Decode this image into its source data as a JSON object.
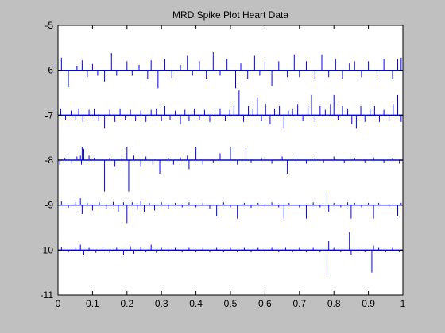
{
  "window": {
    "background": "#c0c0c0"
  },
  "chart_data": {
    "type": "line",
    "title": "MRD Spike Plot Heart Data",
    "xlabel": "",
    "ylabel": "",
    "xlim": [
      0,
      1
    ],
    "ylim": [
      -11,
      -5
    ],
    "xticks": [
      0,
      0.1,
      0.2,
      0.3,
      0.4,
      0.5,
      0.6,
      0.7,
      0.8,
      0.9,
      1
    ],
    "xtick_labels": [
      "0",
      "0.1",
      "0.2",
      "0.3",
      "0.4",
      "0.5",
      "0.6",
      "0.7",
      "0.8",
      "0.9",
      "1"
    ],
    "yticks": [
      -5,
      -6,
      -7,
      -8,
      -9,
      -10,
      -11
    ],
    "ytick_labels": [
      "-5",
      "-6",
      "-7",
      "-8",
      "-9",
      "-10",
      "-11"
    ],
    "grid": false,
    "line_color": "#0000ff",
    "axes_background": "#ffffff",
    "series": [
      {
        "baseline": -6,
        "spikes": [
          [
            0.01,
            0.28
          ],
          [
            0.03,
            -0.38
          ],
          [
            0.055,
            0.1
          ],
          [
            0.07,
            0.22
          ],
          [
            0.085,
            -0.15
          ],
          [
            0.1,
            0.14
          ],
          [
            0.115,
            -0.12
          ],
          [
            0.135,
            -0.25
          ],
          [
            0.155,
            0.38
          ],
          [
            0.17,
            -0.12
          ],
          [
            0.2,
            0.2
          ],
          [
            0.215,
            -0.12
          ],
          [
            0.235,
            0.12
          ],
          [
            0.26,
            -0.2
          ],
          [
            0.27,
            0.22
          ],
          [
            0.29,
            -0.4
          ],
          [
            0.31,
            0.25
          ],
          [
            0.33,
            -0.18
          ],
          [
            0.355,
            0.12
          ],
          [
            0.375,
            0.32
          ],
          [
            0.39,
            -0.12
          ],
          [
            0.41,
            0.2
          ],
          [
            0.43,
            -0.2
          ],
          [
            0.45,
            0.4
          ],
          [
            0.47,
            -0.12
          ],
          [
            0.49,
            0.25
          ],
          [
            0.515,
            -0.4
          ],
          [
            0.53,
            0.15
          ],
          [
            0.55,
            -0.2
          ],
          [
            0.57,
            0.32
          ],
          [
            0.585,
            -0.12
          ],
          [
            0.6,
            0.2
          ],
          [
            0.62,
            -0.35
          ],
          [
            0.64,
            0.2
          ],
          [
            0.665,
            -0.15
          ],
          [
            0.685,
            0.35
          ],
          [
            0.7,
            -0.15
          ],
          [
            0.72,
            0.2
          ],
          [
            0.745,
            -0.2
          ],
          [
            0.765,
            0.35
          ],
          [
            0.785,
            -0.15
          ],
          [
            0.805,
            0.25
          ],
          [
            0.825,
            -0.2
          ],
          [
            0.845,
            0.15
          ],
          [
            0.86,
            0.2
          ],
          [
            0.88,
            -0.15
          ],
          [
            0.9,
            0.2
          ],
          [
            0.925,
            -0.2
          ],
          [
            0.945,
            0.25
          ],
          [
            0.97,
            -0.2
          ],
          [
            0.985,
            0.25
          ],
          [
            0.995,
            0.28
          ]
        ]
      },
      {
        "baseline": -7,
        "spikes": [
          [
            0.008,
            0.15
          ],
          [
            0.022,
            -0.1
          ],
          [
            0.038,
            0.1
          ],
          [
            0.05,
            -0.1
          ],
          [
            0.06,
            0.15
          ],
          [
            0.072,
            -0.15
          ],
          [
            0.09,
            0.12
          ],
          [
            0.105,
            0.15
          ],
          [
            0.118,
            -0.12
          ],
          [
            0.135,
            -0.3
          ],
          [
            0.15,
            0.12
          ],
          [
            0.165,
            -0.15
          ],
          [
            0.18,
            0.15
          ],
          [
            0.195,
            -0.1
          ],
          [
            0.21,
            0.12
          ],
          [
            0.225,
            -0.12
          ],
          [
            0.24,
            0.1
          ],
          [
            0.255,
            -0.15
          ],
          [
            0.27,
            0.12
          ],
          [
            0.285,
            0.15
          ],
          [
            0.3,
            -0.12
          ],
          [
            0.31,
            0.2
          ],
          [
            0.325,
            -0.1
          ],
          [
            0.34,
            0.1
          ],
          [
            0.355,
            -0.2
          ],
          [
            0.368,
            0.12
          ],
          [
            0.38,
            -0.12
          ],
          [
            0.395,
            0.15
          ],
          [
            0.41,
            -0.1
          ],
          [
            0.425,
            0.12
          ],
          [
            0.44,
            -0.15
          ],
          [
            0.455,
            0.12
          ],
          [
            0.47,
            0.15
          ],
          [
            0.485,
            -0.12
          ],
          [
            0.498,
            0.12
          ],
          [
            0.51,
            0.2
          ],
          [
            0.525,
            0.55
          ],
          [
            0.538,
            -0.15
          ],
          [
            0.552,
            0.2
          ],
          [
            0.565,
            0.15
          ],
          [
            0.578,
            0.4
          ],
          [
            0.59,
            -0.12
          ],
          [
            0.602,
            0.25
          ],
          [
            0.615,
            -0.2
          ],
          [
            0.628,
            0.15
          ],
          [
            0.642,
            0.2
          ],
          [
            0.655,
            -0.3
          ],
          [
            0.668,
            0.1
          ],
          [
            0.68,
            0.15
          ],
          [
            0.695,
            0.25
          ],
          [
            0.71,
            -0.12
          ],
          [
            0.725,
            0.2
          ],
          [
            0.735,
            0.45
          ],
          [
            0.745,
            -0.15
          ],
          [
            0.76,
            0.2
          ],
          [
            0.775,
            0.12
          ],
          [
            0.79,
            0.25
          ],
          [
            0.8,
            0.45
          ],
          [
            0.812,
            -0.1
          ],
          [
            0.825,
            0.2
          ],
          [
            0.84,
            0.15
          ],
          [
            0.852,
            -0.2
          ],
          [
            0.865,
            -0.3
          ],
          [
            0.878,
            0.2
          ],
          [
            0.89,
            -0.15
          ],
          [
            0.905,
            0.15
          ],
          [
            0.918,
            0.2
          ],
          [
            0.932,
            -0.15
          ],
          [
            0.945,
            0.12
          ],
          [
            0.96,
            -0.12
          ],
          [
            0.972,
            0.25
          ],
          [
            0.985,
            0.45
          ],
          [
            0.995,
            -0.15
          ]
        ]
      },
      {
        "baseline": -8,
        "spikes": [
          [
            0.005,
            -0.1
          ],
          [
            0.02,
            0.05
          ],
          [
            0.04,
            -0.08
          ],
          [
            0.055,
            0.08
          ],
          [
            0.065,
            0.1
          ],
          [
            0.068,
            -0.1
          ],
          [
            0.07,
            0.3
          ],
          [
            0.075,
            0.25
          ],
          [
            0.09,
            0.1
          ],
          [
            0.105,
            0.05
          ],
          [
            0.135,
            -0.7
          ],
          [
            0.15,
            0.05
          ],
          [
            0.165,
            -0.15
          ],
          [
            0.185,
            0.05
          ],
          [
            0.2,
            0.3
          ],
          [
            0.205,
            -0.7
          ],
          [
            0.22,
            0.1
          ],
          [
            0.24,
            -0.15
          ],
          [
            0.255,
            0.08
          ],
          [
            0.275,
            -0.1
          ],
          [
            0.295,
            -0.3
          ],
          [
            0.32,
            0.05
          ],
          [
            0.335,
            -0.1
          ],
          [
            0.355,
            0.06
          ],
          [
            0.375,
            0.1
          ],
          [
            0.38,
            -0.2
          ],
          [
            0.4,
            0.3
          ],
          [
            0.42,
            -0.1
          ],
          [
            0.45,
            -0.05
          ],
          [
            0.47,
            0.15
          ],
          [
            0.5,
            0.3
          ],
          [
            0.52,
            -0.1
          ],
          [
            0.545,
            0.3
          ],
          [
            0.56,
            -0.05
          ],
          [
            0.59,
            0.05
          ],
          [
            0.62,
            -0.08
          ],
          [
            0.65,
            0.08
          ],
          [
            0.665,
            -0.3
          ],
          [
            0.69,
            0.06
          ],
          [
            0.72,
            -0.08
          ],
          [
            0.745,
            0.05
          ],
          [
            0.77,
            -0.05
          ],
          [
            0.8,
            0.08
          ],
          [
            0.83,
            -0.06
          ],
          [
            0.86,
            0.05
          ],
          [
            0.89,
            -0.05
          ],
          [
            0.915,
            0.06
          ],
          [
            0.945,
            -0.06
          ],
          [
            0.97,
            0.05
          ],
          [
            0.99,
            -0.08
          ]
        ]
      },
      {
        "baseline": -9,
        "spikes": [
          [
            0.01,
            0.08
          ],
          [
            0.03,
            -0.06
          ],
          [
            0.05,
            0.07
          ],
          [
            0.065,
            0.15
          ],
          [
            0.07,
            -0.2
          ],
          [
            0.085,
            0.05
          ],
          [
            0.1,
            -0.12
          ],
          [
            0.12,
            0.06
          ],
          [
            0.14,
            -0.08
          ],
          [
            0.16,
            0.07
          ],
          [
            0.175,
            -0.15
          ],
          [
            0.19,
            0.06
          ],
          [
            0.2,
            -0.4
          ],
          [
            0.215,
            0.06
          ],
          [
            0.23,
            -0.1
          ],
          [
            0.24,
            0.1
          ],
          [
            0.25,
            -0.15
          ],
          [
            0.265,
            0.05
          ],
          [
            0.28,
            -0.12
          ],
          [
            0.3,
            0.06
          ],
          [
            0.32,
            -0.08
          ],
          [
            0.34,
            0.05
          ],
          [
            0.36,
            -0.05
          ],
          [
            0.38,
            0.06
          ],
          [
            0.4,
            -0.05
          ],
          [
            0.42,
            0.05
          ],
          [
            0.44,
            -0.08
          ],
          [
            0.46,
            -0.25
          ],
          [
            0.48,
            0.06
          ],
          [
            0.5,
            -0.05
          ],
          [
            0.52,
            -0.3
          ],
          [
            0.54,
            0.05
          ],
          [
            0.56,
            -0.06
          ],
          [
            0.58,
            0.05
          ],
          [
            0.6,
            -0.05
          ],
          [
            0.62,
            0.06
          ],
          [
            0.64,
            -0.05
          ],
          [
            0.655,
            -0.3
          ],
          [
            0.67,
            0.05
          ],
          [
            0.7,
            -0.05
          ],
          [
            0.72,
            -0.3
          ],
          [
            0.74,
            0.06
          ],
          [
            0.76,
            -0.05
          ],
          [
            0.78,
            0.3
          ],
          [
            0.785,
            -0.15
          ],
          [
            0.8,
            0.05
          ],
          [
            0.82,
            -0.05
          ],
          [
            0.84,
            0.06
          ],
          [
            0.85,
            -0.3
          ],
          [
            0.86,
            0.05
          ],
          [
            0.88,
            -0.05
          ],
          [
            0.9,
            0.05
          ],
          [
            0.915,
            -0.3
          ],
          [
            0.93,
            0.05
          ],
          [
            0.96,
            -0.05
          ],
          [
            0.985,
            -0.25
          ],
          [
            0.995,
            0.05
          ]
        ]
      },
      {
        "baseline": -10,
        "spikes": [
          [
            0.01,
            0.06
          ],
          [
            0.03,
            -0.05
          ],
          [
            0.05,
            0.05
          ],
          [
            0.065,
            0.12
          ],
          [
            0.075,
            -0.1
          ],
          [
            0.09,
            0.05
          ],
          [
            0.11,
            -0.06
          ],
          [
            0.13,
            0.05
          ],
          [
            0.15,
            -0.06
          ],
          [
            0.17,
            0.05
          ],
          [
            0.19,
            -0.1
          ],
          [
            0.21,
            0.08
          ],
          [
            0.22,
            -0.08
          ],
          [
            0.24,
            0.06
          ],
          [
            0.255,
            -0.05
          ],
          [
            0.27,
            0.12
          ],
          [
            0.285,
            -0.06
          ],
          [
            0.3,
            0.05
          ],
          [
            0.32,
            -0.05
          ],
          [
            0.34,
            0.05
          ],
          [
            0.36,
            -0.05
          ],
          [
            0.38,
            0.05
          ],
          [
            0.4,
            -0.05
          ],
          [
            0.42,
            0.05
          ],
          [
            0.44,
            -0.05
          ],
          [
            0.46,
            0.05
          ],
          [
            0.48,
            -0.05
          ],
          [
            0.5,
            0.05
          ],
          [
            0.52,
            -0.05
          ],
          [
            0.54,
            0.05
          ],
          [
            0.56,
            -0.05
          ],
          [
            0.58,
            0.05
          ],
          [
            0.6,
            -0.05
          ],
          [
            0.62,
            0.05
          ],
          [
            0.64,
            -0.05
          ],
          [
            0.66,
            0.05
          ],
          [
            0.68,
            -0.05
          ],
          [
            0.7,
            0.05
          ],
          [
            0.72,
            -0.05
          ],
          [
            0.74,
            0.05
          ],
          [
            0.76,
            -0.05
          ],
          [
            0.78,
            -0.55
          ],
          [
            0.785,
            0.2
          ],
          [
            0.8,
            0.05
          ],
          [
            0.82,
            -0.05
          ],
          [
            0.845,
            0.4
          ],
          [
            0.85,
            -0.1
          ],
          [
            0.87,
            0.05
          ],
          [
            0.89,
            -0.05
          ],
          [
            0.91,
            -0.5
          ],
          [
            0.915,
            0.1
          ],
          [
            0.93,
            0.05
          ],
          [
            0.95,
            -0.05
          ],
          [
            0.97,
            0.05
          ],
          [
            0.99,
            -0.05
          ]
        ]
      }
    ]
  }
}
